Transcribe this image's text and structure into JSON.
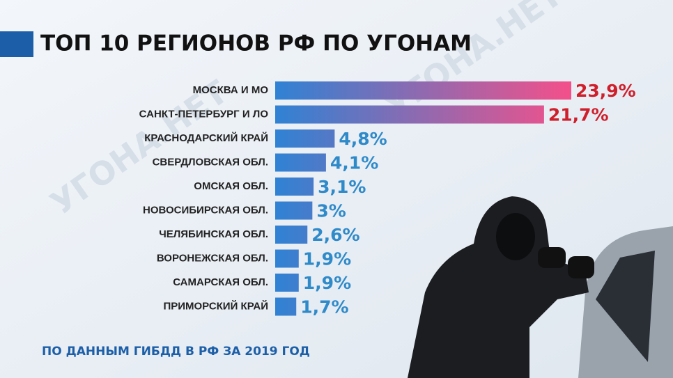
{
  "chart_data": {
    "type": "bar",
    "orientation": "horizontal",
    "title": "ТОП 10 РЕГИОНОВ РФ ПО УГОНАМ",
    "categories": [
      "МОСКВА И МО",
      "САНКТ-ПЕТЕРБУРГ И ЛО",
      "КРАСНОДАРСКИЙ КРАЙ",
      "СВЕРДЛОВСКАЯ ОБЛ.",
      "ОМСКАЯ ОБЛ.",
      "НОВОСИБИРСКАЯ ОБЛ.",
      "ЧЕЛЯБИНСКАЯ ОБЛ.",
      "ВОРОНЕЖСКАЯ ОБЛ.",
      "САМАРСКАЯ ОБЛ.",
      "ПРИМОРСКИЙ КРАЙ"
    ],
    "values": [
      23.9,
      21.7,
      4.8,
      4.1,
      3.1,
      3,
      2.6,
      1.9,
      1.9,
      1.7
    ],
    "value_labels": [
      "23,9%",
      "21,7%",
      "4,8%",
      "4,1%",
      "3,1%",
      "3%",
      "2,6%",
      "1,9%",
      "1,9%",
      "1,7%"
    ],
    "value_label_colors": [
      "#cf1f2b",
      "#cf1f2b",
      "#2f8ac9",
      "#2f8ac9",
      "#2f8ac9",
      "#2f8ac9",
      "#2f8ac9",
      "#2f8ac9",
      "#2f8ac9",
      "#2f8ac9"
    ],
    "gradient": [
      "#2f82d4",
      "#f4508a"
    ],
    "source": "ПО ДАННЫМ ГИБДД В РФ ЗА 2019 ГОД",
    "watermark": "УГОНА.НЕТ"
  }
}
